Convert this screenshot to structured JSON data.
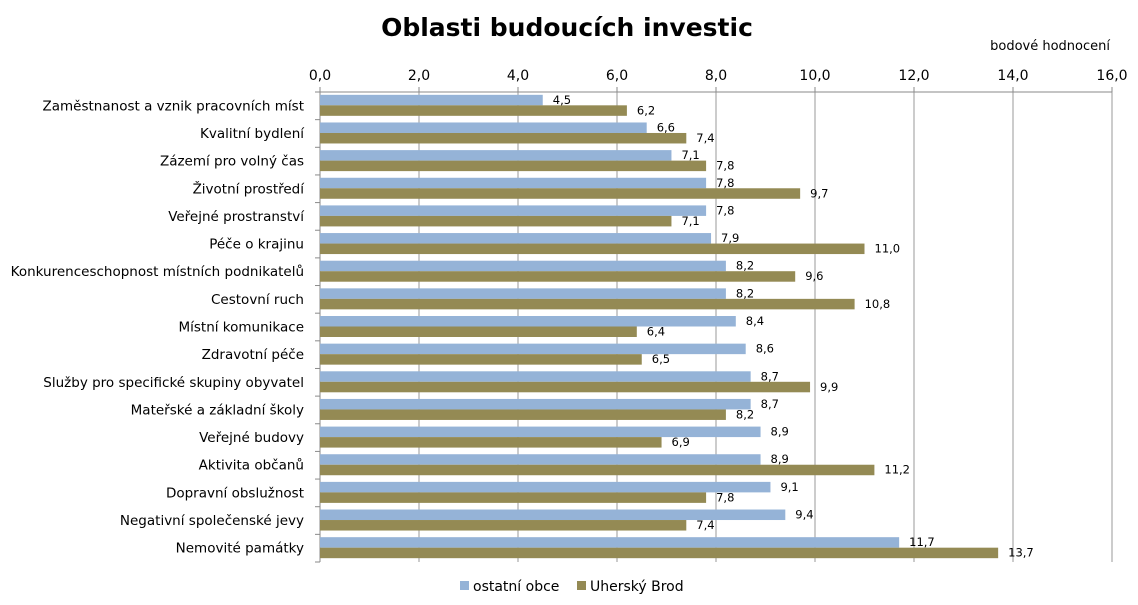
{
  "chart_data": {
    "type": "bar",
    "orientation": "horizontal",
    "title": "Oblasti budoucích investic",
    "unit_label": "bodové hodnocení",
    "xlim": [
      0,
      16
    ],
    "ticks": [
      "0,0",
      "2,0",
      "4,0",
      "6,0",
      "8,0",
      "10,0",
      "12,0",
      "14,0",
      "16,0"
    ],
    "tick_values": [
      0,
      2,
      4,
      6,
      8,
      10,
      12,
      14,
      16
    ],
    "grid": true,
    "legend_position": "bottom",
    "categories": [
      "Zaměstnanost a vznik pracovních míst",
      "Kvalitní bydlení",
      "Zázemí pro volný čas",
      "Životní prostředí",
      "Veřejné prostranství",
      "Péče o krajinu",
      "Konkurenceschopnost místních podnikatelů",
      "Cestovní ruch",
      "Místní komunikace",
      "Zdravotní péče",
      "Služby pro specifické skupiny obyvatel",
      "Mateřské a základní školy",
      "Veřejné budovy",
      "Aktivita občanů",
      "Dopravní obslužnost",
      "Negativní společenské jevy",
      "Nemovité památky"
    ],
    "series": [
      {
        "name": "ostatní obce",
        "color": "#95b3d7",
        "values": [
          4.5,
          6.6,
          7.1,
          7.8,
          7.8,
          7.9,
          8.2,
          8.2,
          8.4,
          8.6,
          8.7,
          8.7,
          8.9,
          8.9,
          9.1,
          9.4,
          11.7
        ],
        "labels": [
          "4,5",
          "6,6",
          "7,1",
          "7,8",
          "7,8",
          "7,9",
          "8,2",
          "8,2",
          "8,4",
          "8,6",
          "8,7",
          "8,7",
          "8,9",
          "8,9",
          "9,1",
          "9,4",
          "11,7"
        ]
      },
      {
        "name": "Uherský Brod",
        "color": "#948a54",
        "values": [
          6.2,
          7.4,
          7.8,
          9.7,
          7.1,
          11.0,
          9.6,
          10.8,
          6.4,
          6.5,
          9.9,
          8.2,
          6.9,
          11.2,
          7.8,
          7.4,
          13.7
        ],
        "labels": [
          "6,2",
          "7,4",
          "7,8",
          "9,7",
          "7,1",
          "11,0",
          "9,6",
          "10,8",
          "6,4",
          "6,5",
          "9,9",
          "8,2",
          "6,9",
          "11,2",
          "7,8",
          "7,4",
          "13,7"
        ]
      }
    ]
  }
}
